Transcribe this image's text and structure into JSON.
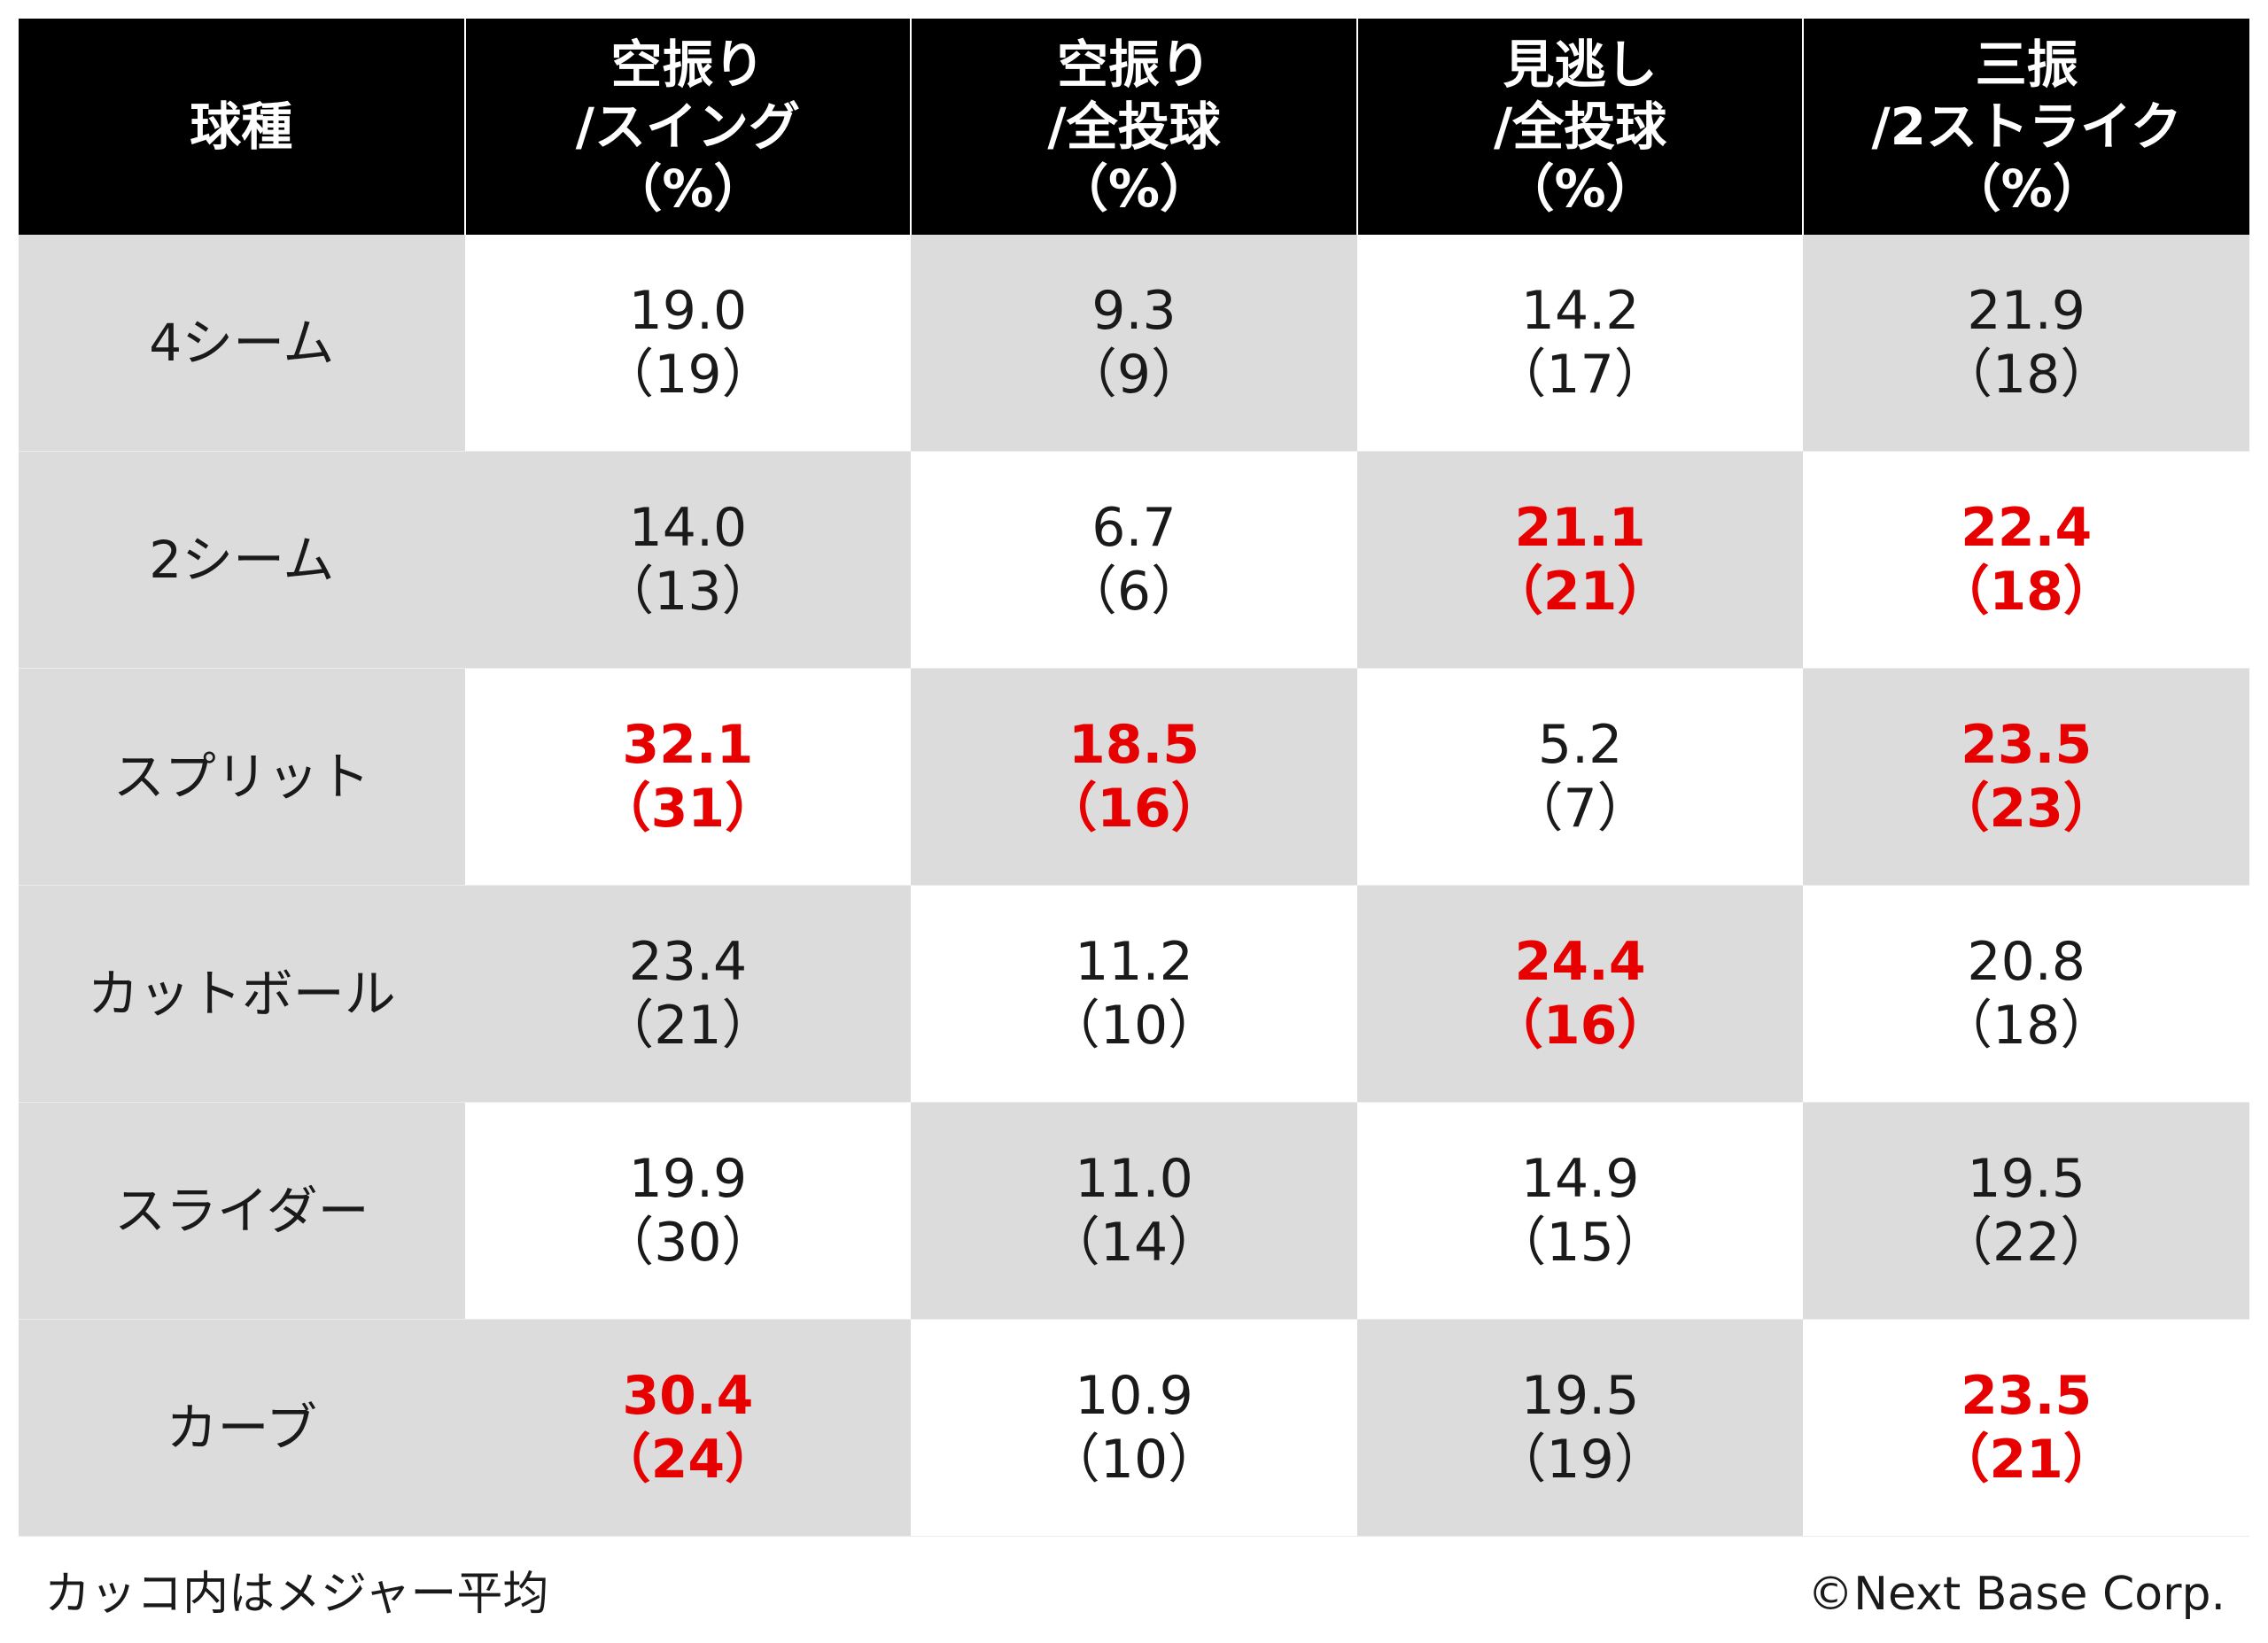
{
  "chart_data": {
    "type": "table",
    "columns": [
      "球種",
      "空振り\n/スイング\n（%）",
      "空振り\n/全投球\n（%）",
      "見逃し\n/全投球\n（%）",
      "三振\n/2ストライク\n（%）"
    ],
    "rows": [
      {
        "label": "4シーム",
        "cells": [
          {
            "value": "19.0",
            "avg": "（19）",
            "highlight": false
          },
          {
            "value": "9.3",
            "avg": "（9）",
            "highlight": false
          },
          {
            "value": "14.2",
            "avg": "（17）",
            "highlight": false
          },
          {
            "value": "21.9",
            "avg": "（18）",
            "highlight": false
          }
        ]
      },
      {
        "label": "2シーム",
        "cells": [
          {
            "value": "14.0",
            "avg": "（13）",
            "highlight": false
          },
          {
            "value": "6.7",
            "avg": "（6）",
            "highlight": false
          },
          {
            "value": "21.1",
            "avg": "（21）",
            "highlight": true
          },
          {
            "value": "22.4",
            "avg": "（18）",
            "highlight": true
          }
        ]
      },
      {
        "label": "スプリット",
        "cells": [
          {
            "value": "32.1",
            "avg": "（31）",
            "highlight": true
          },
          {
            "value": "18.5",
            "avg": "（16）",
            "highlight": true
          },
          {
            "value": "5.2",
            "avg": "（7）",
            "highlight": false
          },
          {
            "value": "23.5",
            "avg": "（23）",
            "highlight": true
          }
        ]
      },
      {
        "label": "カットボール",
        "cells": [
          {
            "value": "23.4",
            "avg": "（21）",
            "highlight": false
          },
          {
            "value": "11.2",
            "avg": "（10）",
            "highlight": false
          },
          {
            "value": "24.4",
            "avg": "（16）",
            "highlight": true
          },
          {
            "value": "20.8",
            "avg": "（18）",
            "highlight": false
          }
        ]
      },
      {
        "label": "スライダー",
        "cells": [
          {
            "value": "19.9",
            "avg": "（30）",
            "highlight": false
          },
          {
            "value": "11.0",
            "avg": "（14）",
            "highlight": false
          },
          {
            "value": "14.9",
            "avg": "（15）",
            "highlight": false
          },
          {
            "value": "19.5",
            "avg": "（22）",
            "highlight": false
          }
        ]
      },
      {
        "label": "カーブ",
        "cells": [
          {
            "value": "30.4",
            "avg": "（24）",
            "highlight": true
          },
          {
            "value": "10.9",
            "avg": "（10）",
            "highlight": false
          },
          {
            "value": "19.5",
            "avg": "（19）",
            "highlight": false
          },
          {
            "value": "23.5",
            "avg": "（21）",
            "highlight": true
          }
        ]
      }
    ],
    "note": "カッコ内はメジャー平均",
    "credit": "©Next Base Corp."
  },
  "colors": {
    "header_bg": "#000000",
    "header_text": "#ffffff",
    "shade_bg": "#dcdcdc",
    "plain_bg": "#ffffff",
    "highlight": "#e60000",
    "text": "#1a1a1a"
  }
}
